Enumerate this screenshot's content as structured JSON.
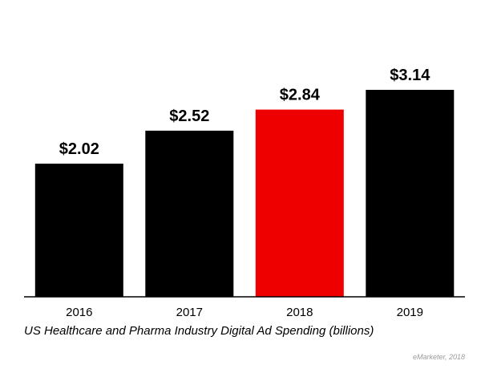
{
  "chart_data": {
    "type": "bar",
    "categories": [
      "2016",
      "2017",
      "2018",
      "2019"
    ],
    "values": [
      2.02,
      2.52,
      2.84,
      3.14
    ],
    "data_labels": [
      "$2.02",
      "$2.52",
      "$2.84",
      "$3.14"
    ],
    "title": "US Healthcare and Pharma Industry Digital Ad Spending (billions)",
    "xlabel": "",
    "ylabel": "",
    "ylim": [
      0,
      3.14
    ],
    "grid": false,
    "bar_colors": [
      "#000000",
      "#000000",
      "#ee0000",
      "#000000"
    ],
    "highlight_category": "2018"
  },
  "source": "eMarketer, 2018"
}
